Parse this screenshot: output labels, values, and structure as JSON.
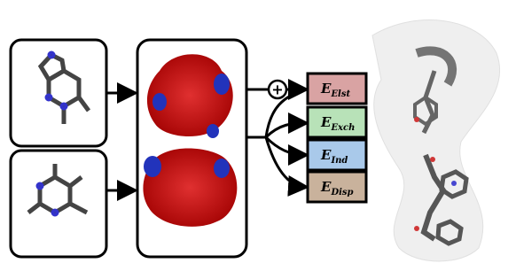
{
  "operator": "+",
  "energy_terms": [
    {
      "symbol": "E",
      "subscript": "Elst",
      "color": "#d9a3a3"
    },
    {
      "symbol": "E",
      "subscript": "Exch",
      "color": "#b8e2b8"
    },
    {
      "symbol": "E",
      "subscript": "Ind",
      "color": "#a9c9ea"
    },
    {
      "symbol": "E",
      "subscript": "Disp",
      "color": "#c9b29c"
    }
  ]
}
